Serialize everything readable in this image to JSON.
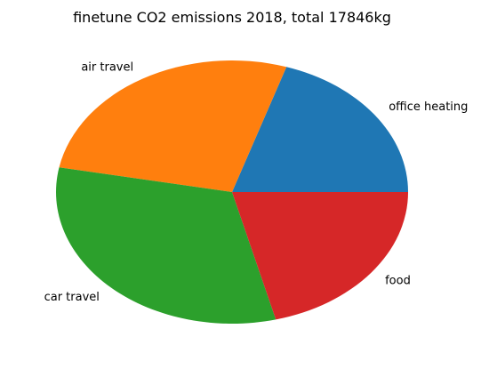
{
  "chart_data": {
    "type": "pie",
    "title": "finetune CO2 emissions 2018, total 17846kg",
    "categories": [
      "office heating",
      "air travel",
      "car travel",
      "food"
    ],
    "values": [
      20.0,
      27.0,
      32.0,
      21.0
    ],
    "colors": [
      "#1f77b4",
      "#ff7f0e",
      "#2ca02c",
      "#d62728"
    ],
    "start_angle_deg": 0,
    "direction": "counterclockwise",
    "legend": "none",
    "grid": false
  }
}
